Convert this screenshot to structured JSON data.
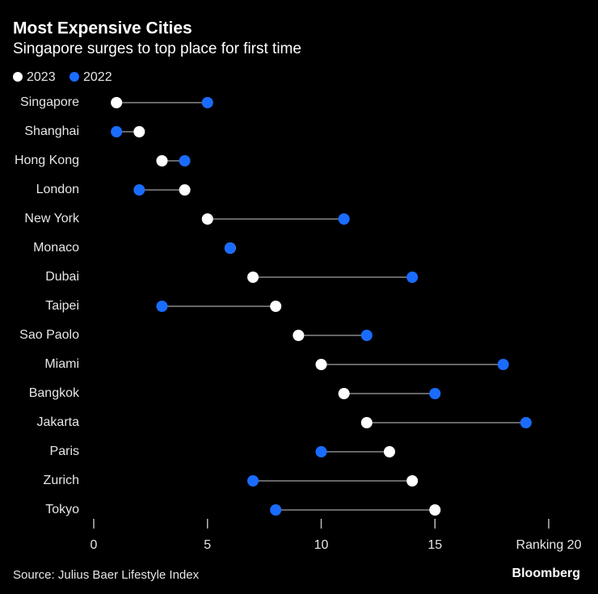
{
  "chart_data": {
    "type": "dumbbell",
    "title": "Most Expensive Cities",
    "subtitle": "Singapore surges to top place for first time",
    "categories": [
      "Singapore",
      "Shanghai",
      "Hong Kong",
      "London",
      "New York",
      "Monaco",
      "Dubai",
      "Taipei",
      "Sao Paolo",
      "Miami",
      "Bangkok",
      "Jakarta",
      "Paris",
      "Zurich",
      "Tokyo"
    ],
    "series": [
      {
        "name": "2023",
        "color": "#ffffff",
        "values": [
          1,
          2,
          3,
          4,
          5,
          6,
          7,
          8,
          9,
          10,
          11,
          12,
          13,
          14,
          15
        ]
      },
      {
        "name": "2022",
        "color": "#1a6cff",
        "values": [
          5,
          1,
          4,
          2,
          11,
          6,
          14,
          3,
          12,
          18,
          15,
          19,
          10,
          7,
          8
        ]
      }
    ],
    "xlim": [
      0,
      20
    ],
    "xticks": [
      0,
      5,
      10,
      15,
      {
        "value": 20,
        "label": "Ranking 20"
      }
    ],
    "source": "Source: Julius Baer Lifestyle Index",
    "brand": "Bloomberg"
  }
}
